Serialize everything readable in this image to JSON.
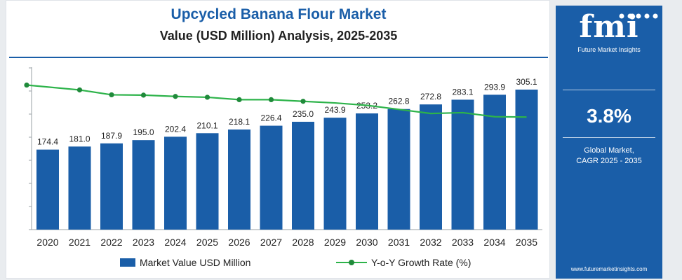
{
  "header": {
    "title": "Upcycled Banana Flour Market",
    "subtitle": "Value (USD Million) Analysis, 2025-2035"
  },
  "legend": {
    "bar_label": "Market Value USD Million",
    "line_label": "Y-o-Y Growth Rate (%)"
  },
  "side_panel": {
    "logo_text": "fmi",
    "logo_subtitle": "Future Market Insights",
    "cagr_value": "3.8%",
    "cagr_label_line1": "Global Market,",
    "cagr_label_line2": "CAGR 2025 - 2035",
    "website": "www.futuremarketinsights.com"
  },
  "colors": {
    "bar": "#1a5ea8",
    "line": "#2db34a",
    "marker": "#1f8a3a",
    "panel": "#1a5ea8"
  },
  "chart_data": {
    "type": "bar",
    "categories": [
      "2020",
      "2021",
      "2022",
      "2023",
      "2024",
      "2025",
      "2026",
      "2027",
      "2028",
      "2029",
      "2030",
      "2031",
      "2032",
      "2033",
      "2034",
      "2035"
    ],
    "series": [
      {
        "name": "Market Value USD Million",
        "type": "bar",
        "values": [
          174.4,
          181.0,
          187.9,
          195.0,
          202.4,
          210.1,
          218.1,
          226.4,
          235.0,
          243.9,
          253.2,
          262.8,
          272.8,
          283.1,
          293.9,
          305.1
        ],
        "labels": [
          "174.4",
          "181.0",
          "187.9",
          "195.0",
          "202.4",
          "210.1",
          "218.1",
          "226.4",
          "235.0",
          "243.9",
          "253.2",
          "262.8",
          "272.8",
          "283.1",
          "293.9",
          "305.1"
        ]
      },
      {
        "name": "Y-o-Y Growth Rate (%)",
        "type": "line",
        "values": [
          4.4,
          4.1,
          3.8,
          3.78,
          3.7,
          3.65,
          3.5,
          3.5,
          3.4,
          3.3,
          3.15,
          2.9,
          2.65,
          2.7,
          2.45,
          2.43
        ],
        "markers": [
          true,
          true,
          true,
          true,
          true,
          true,
          true,
          true,
          true,
          false,
          false,
          false,
          false,
          false,
          false,
          false
        ]
      }
    ],
    "ylim": [
      0,
      330
    ],
    "y2lim": [
      -4.5,
      5.5
    ],
    "grid": false,
    "legend_position": "bottom"
  }
}
